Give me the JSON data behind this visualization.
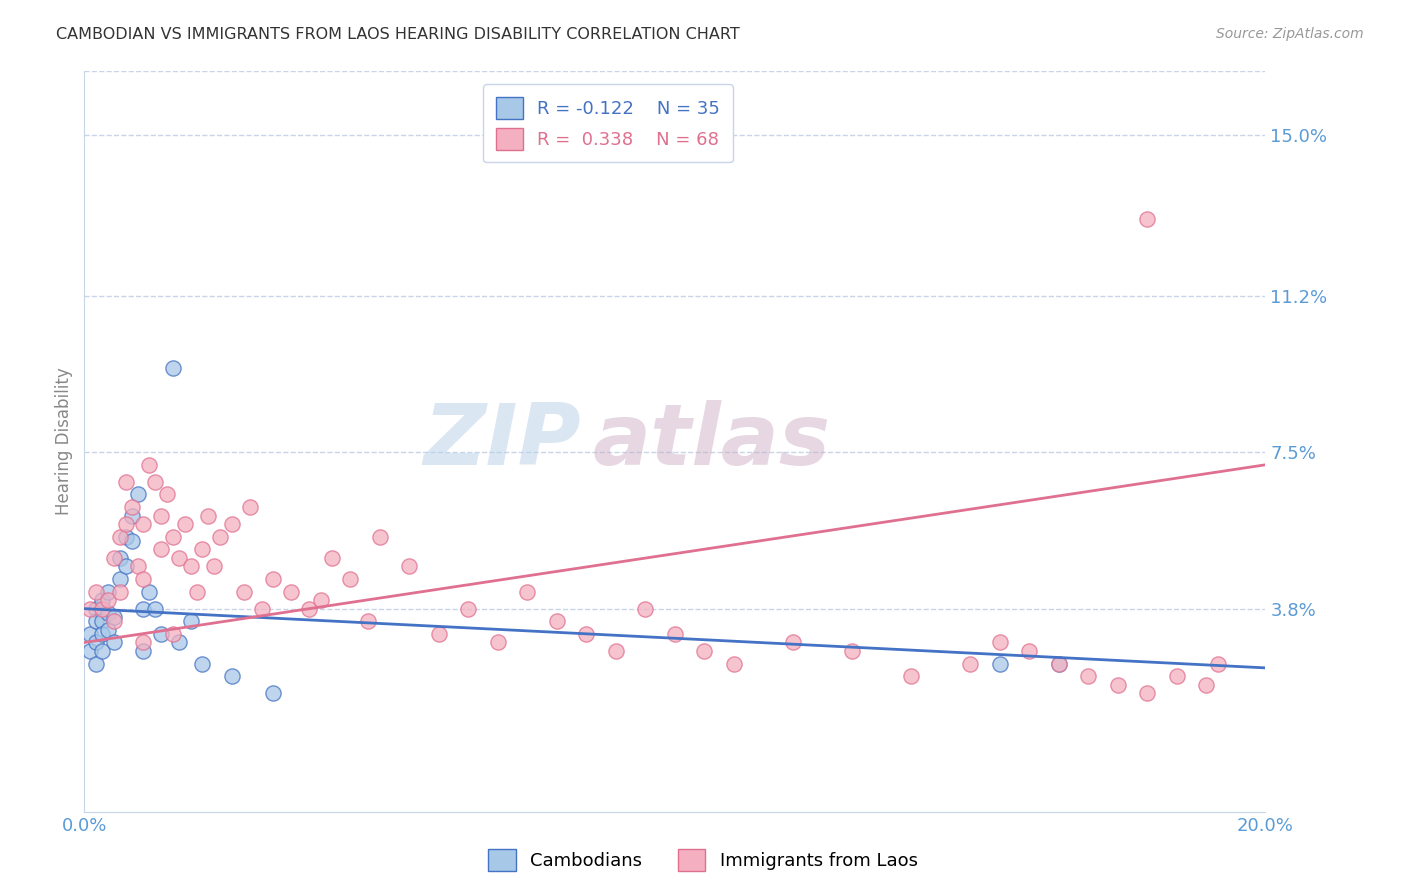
{
  "title": "CAMBODIAN VS IMMIGRANTS FROM LAOS HEARING DISABILITY CORRELATION CHART",
  "source": "Source: ZipAtlas.com",
  "ylabel": "Hearing Disability",
  "xlim": [
    0.0,
    0.2
  ],
  "ylim": [
    -0.01,
    0.165
  ],
  "yticks": [
    0.038,
    0.075,
    0.112,
    0.15
  ],
  "ytick_labels": [
    "3.8%",
    "7.5%",
    "11.2%",
    "15.0%"
  ],
  "xticks": [
    0.0,
    0.05,
    0.1,
    0.15,
    0.2
  ],
  "xtick_labels": [
    "0.0%",
    "",
    "",
    "",
    "20.0%"
  ],
  "watermark_zip": "ZIP",
  "watermark_atlas": "atlas",
  "blue_R": -0.122,
  "blue_N": 35,
  "pink_R": 0.338,
  "pink_N": 68,
  "blue_color": "#a8c8e8",
  "pink_color": "#f4b0c0",
  "blue_line_color": "#4472c4",
  "pink_line_color": "#e07090",
  "axis_color": "#5b9bd5",
  "grid_color": "#c8d4e8",
  "background_color": "#ffffff",
  "blue_line_x0": 0.0,
  "blue_line_y0": 0.038,
  "blue_line_x1": 0.2,
  "blue_line_y1": 0.024,
  "pink_line_x0": 0.0,
  "pink_line_y0": 0.03,
  "pink_line_x1": 0.2,
  "pink_line_y1": 0.072,
  "blue_scatter_x": [
    0.001,
    0.001,
    0.002,
    0.002,
    0.002,
    0.002,
    0.003,
    0.003,
    0.003,
    0.003,
    0.004,
    0.004,
    0.004,
    0.005,
    0.005,
    0.006,
    0.006,
    0.007,
    0.007,
    0.008,
    0.008,
    0.009,
    0.01,
    0.01,
    0.011,
    0.012,
    0.013,
    0.015,
    0.016,
    0.018,
    0.02,
    0.025,
    0.032,
    0.155,
    0.165
  ],
  "blue_scatter_y": [
    0.032,
    0.028,
    0.038,
    0.035,
    0.03,
    0.025,
    0.04,
    0.035,
    0.032,
    0.028,
    0.042,
    0.037,
    0.033,
    0.036,
    0.03,
    0.05,
    0.045,
    0.055,
    0.048,
    0.06,
    0.054,
    0.065,
    0.038,
    0.028,
    0.042,
    0.038,
    0.032,
    0.095,
    0.03,
    0.035,
    0.025,
    0.022,
    0.018,
    0.025,
    0.025
  ],
  "pink_scatter_x": [
    0.001,
    0.002,
    0.003,
    0.004,
    0.005,
    0.005,
    0.006,
    0.006,
    0.007,
    0.007,
    0.008,
    0.009,
    0.01,
    0.01,
    0.011,
    0.012,
    0.013,
    0.013,
    0.014,
    0.015,
    0.016,
    0.017,
    0.018,
    0.019,
    0.02,
    0.021,
    0.022,
    0.023,
    0.025,
    0.027,
    0.028,
    0.03,
    0.032,
    0.035,
    0.038,
    0.04,
    0.042,
    0.045,
    0.048,
    0.05,
    0.055,
    0.06,
    0.065,
    0.07,
    0.075,
    0.08,
    0.085,
    0.09,
    0.095,
    0.1,
    0.105,
    0.11,
    0.12,
    0.13,
    0.14,
    0.15,
    0.155,
    0.16,
    0.165,
    0.17,
    0.175,
    0.18,
    0.185,
    0.19,
    0.192,
    0.01,
    0.015,
    0.18
  ],
  "pink_scatter_y": [
    0.038,
    0.042,
    0.038,
    0.04,
    0.05,
    0.035,
    0.055,
    0.042,
    0.068,
    0.058,
    0.062,
    0.048,
    0.058,
    0.045,
    0.072,
    0.068,
    0.06,
    0.052,
    0.065,
    0.055,
    0.05,
    0.058,
    0.048,
    0.042,
    0.052,
    0.06,
    0.048,
    0.055,
    0.058,
    0.042,
    0.062,
    0.038,
    0.045,
    0.042,
    0.038,
    0.04,
    0.05,
    0.045,
    0.035,
    0.055,
    0.048,
    0.032,
    0.038,
    0.03,
    0.042,
    0.035,
    0.032,
    0.028,
    0.038,
    0.032,
    0.028,
    0.025,
    0.03,
    0.028,
    0.022,
    0.025,
    0.03,
    0.028,
    0.025,
    0.022,
    0.02,
    0.018,
    0.022,
    0.02,
    0.025,
    0.03,
    0.032,
    0.13
  ]
}
